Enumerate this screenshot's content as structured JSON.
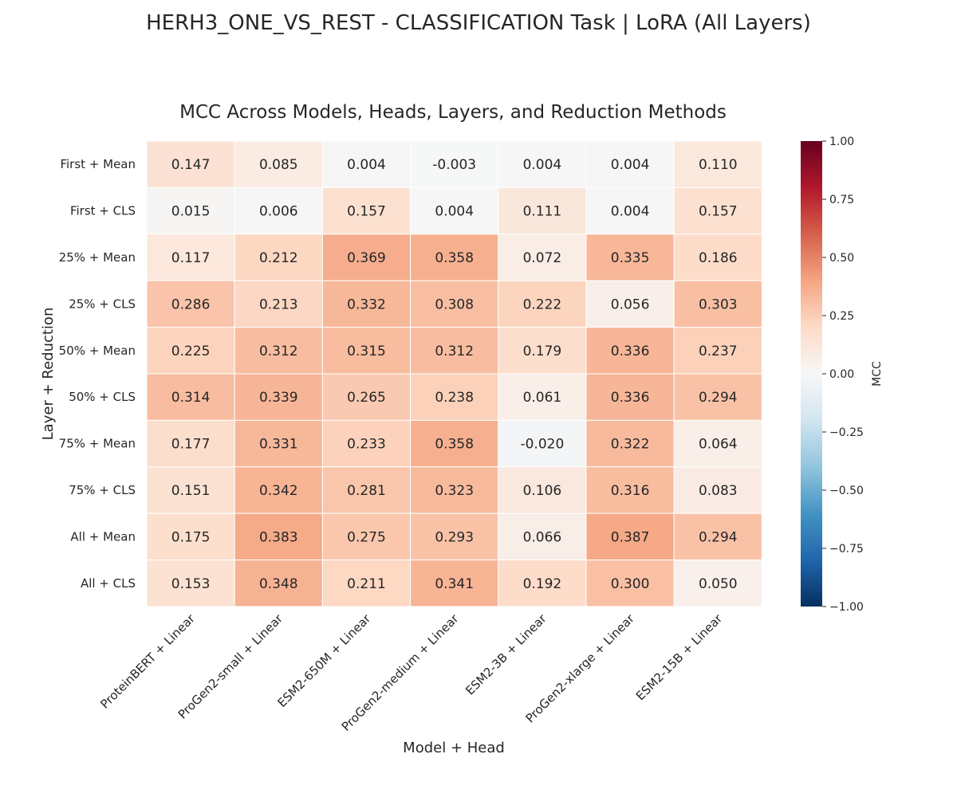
{
  "figure": {
    "title": "HERH3_ONE_VS_REST - CLASSIFICATION Task | LoRA (All Layers)"
  },
  "chart_data": {
    "type": "heatmap",
    "title": "MCC Across Models, Heads, Layers, and Reduction Methods",
    "xlabel": "Model + Head",
    "ylabel": "Layer + Reduction",
    "colorbar_label": "MCC",
    "colormap": "RdBu_r",
    "vmin": -1.0,
    "vmax": 1.0,
    "colorbar_ticks": [
      "1.00",
      "0.75",
      "0.50",
      "0.25",
      "0.00",
      "−0.25",
      "−0.50",
      "−0.75",
      "−1.00"
    ],
    "colorbar_tick_values": [
      1.0,
      0.75,
      0.5,
      0.25,
      0.0,
      -0.25,
      -0.5,
      -0.75,
      -1.0
    ],
    "columns": [
      "ProteinBERT + Linear",
      "ProGen2-small + Linear",
      "ESM2-650M + Linear",
      "ProGen2-medium + Linear",
      "ESM2-3B + Linear",
      "ProGen2-xlarge + Linear",
      "ESM2-15B + Linear"
    ],
    "rows": [
      "First + Mean",
      "First + CLS",
      "25% + Mean",
      "25% + CLS",
      "50% + Mean",
      "50% + CLS",
      "75% + Mean",
      "75% + CLS",
      "All + Mean",
      "All + CLS"
    ],
    "values": [
      [
        0.147,
        0.085,
        0.004,
        -0.003,
        0.004,
        0.004,
        0.11
      ],
      [
        0.015,
        0.006,
        0.157,
        0.004,
        0.111,
        0.004,
        0.157
      ],
      [
        0.117,
        0.212,
        0.369,
        0.358,
        0.072,
        0.335,
        0.186
      ],
      [
        0.286,
        0.213,
        0.332,
        0.308,
        0.222,
        0.056,
        0.303
      ],
      [
        0.225,
        0.312,
        0.315,
        0.312,
        0.179,
        0.336,
        0.237
      ],
      [
        0.314,
        0.339,
        0.265,
        0.238,
        0.061,
        0.336,
        0.294
      ],
      [
        0.177,
        0.331,
        0.233,
        0.358,
        -0.02,
        0.322,
        0.064
      ],
      [
        0.151,
        0.342,
        0.281,
        0.323,
        0.106,
        0.316,
        0.083
      ],
      [
        0.175,
        0.383,
        0.275,
        0.293,
        0.066,
        0.387,
        0.294
      ],
      [
        0.153,
        0.348,
        0.211,
        0.341,
        0.192,
        0.3,
        0.05
      ]
    ],
    "value_labels": [
      [
        "0.147",
        "0.085",
        "0.004",
        "-0.003",
        "0.004",
        "0.004",
        "0.110"
      ],
      [
        "0.015",
        "0.006",
        "0.157",
        "0.004",
        "0.111",
        "0.004",
        "0.157"
      ],
      [
        "0.117",
        "0.212",
        "0.369",
        "0.358",
        "0.072",
        "0.335",
        "0.186"
      ],
      [
        "0.286",
        "0.213",
        "0.332",
        "0.308",
        "0.222",
        "0.056",
        "0.303"
      ],
      [
        "0.225",
        "0.312",
        "0.315",
        "0.312",
        "0.179",
        "0.336",
        "0.237"
      ],
      [
        "0.314",
        "0.339",
        "0.265",
        "0.238",
        "0.061",
        "0.336",
        "0.294"
      ],
      [
        "0.177",
        "0.331",
        "0.233",
        "0.358",
        "-0.020",
        "0.322",
        "0.064"
      ],
      [
        "0.151",
        "0.342",
        "0.281",
        "0.323",
        "0.106",
        "0.316",
        "0.083"
      ],
      [
        "0.175",
        "0.383",
        "0.275",
        "0.293",
        "0.066",
        "0.387",
        "0.294"
      ],
      [
        "0.153",
        "0.348",
        "0.211",
        "0.341",
        "0.192",
        "0.300",
        "0.050"
      ]
    ]
  }
}
